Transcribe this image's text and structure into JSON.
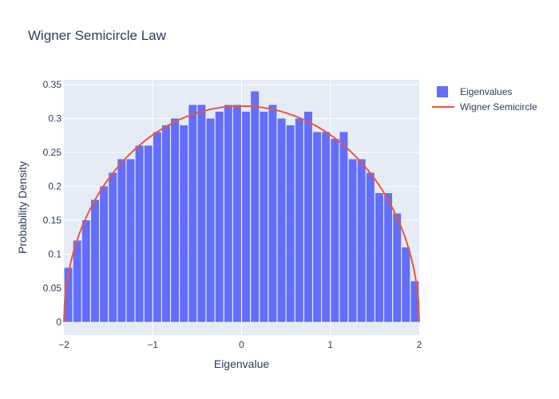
{
  "chart_data": {
    "type": "bar",
    "title": "Wigner Semicircle Law",
    "xlabel": "Eigenvalue",
    "ylabel": "Probability Density",
    "xlim": [
      -2,
      2
    ],
    "ylim": [
      -0.0194,
      0.357
    ],
    "xticks": [
      -2,
      -1,
      0,
      1,
      2
    ],
    "xtick_labels": [
      "−2",
      "−1",
      "0",
      "1",
      "2"
    ],
    "yticks": [
      0,
      0.05,
      0.1,
      0.15,
      0.2,
      0.25,
      0.3,
      0.35
    ],
    "ytick_labels": [
      "0",
      "0.05",
      "0.1",
      "0.15",
      "0.2",
      "0.25",
      "0.3",
      "0.35"
    ],
    "grid": true,
    "legend_position": "top-right",
    "bin_width": 0.1,
    "series": [
      {
        "name": "Eigenvalues",
        "type": "bar",
        "color": "#636efa",
        "x": [
          -1.95,
          -1.85,
          -1.75,
          -1.65,
          -1.55,
          -1.45,
          -1.35,
          -1.25,
          -1.15,
          -1.05,
          -0.95,
          -0.85,
          -0.75,
          -0.65,
          -0.55,
          -0.45,
          -0.35,
          -0.25,
          -0.15,
          -0.05,
          0.05,
          0.15,
          0.25,
          0.35,
          0.45,
          0.55,
          0.65,
          0.75,
          0.85,
          0.95,
          1.05,
          1.15,
          1.25,
          1.35,
          1.45,
          1.55,
          1.65,
          1.75,
          1.85,
          1.95
        ],
        "values": [
          0.08,
          0.12,
          0.15,
          0.18,
          0.2,
          0.22,
          0.24,
          0.24,
          0.26,
          0.26,
          0.28,
          0.29,
          0.3,
          0.29,
          0.32,
          0.32,
          0.3,
          0.31,
          0.32,
          0.32,
          0.31,
          0.34,
          0.31,
          0.32,
          0.3,
          0.29,
          0.3,
          0.31,
          0.28,
          0.28,
          0.27,
          0.28,
          0.24,
          0.24,
          0.22,
          0.19,
          0.19,
          0.16,
          0.11,
          0.06
        ]
      },
      {
        "name": "Wigner Semicircle",
        "type": "line",
        "color": "#ef553b",
        "formula": "sqrt(4 - x^2) / (2*pi)",
        "x_range": [
          -2,
          2
        ]
      }
    ]
  }
}
